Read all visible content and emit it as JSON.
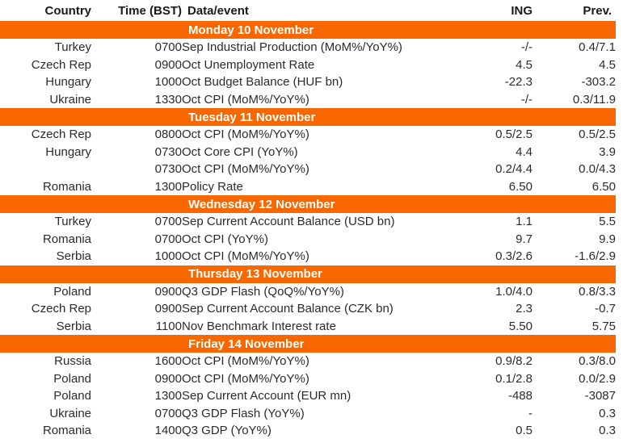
{
  "colors": {
    "accent_orange": "#f96800",
    "band_text": "#ffffff",
    "body_text": "#2b2b2b",
    "background": "#ffffff"
  },
  "chart_data": {
    "type": "table",
    "columns": [
      "Country",
      "Time (BST)",
      "Data/event",
      "ING",
      "Prev."
    ],
    "sections": [
      {
        "day": "Monday 10 November",
        "rows": [
          {
            "country": "Turkey",
            "time": "0700",
            "event": "Sep Industrial Production (MoM%/YoY%)",
            "ing": "-/-",
            "prev": "0.4/7.1"
          },
          {
            "country": "Czech Rep",
            "time": "0900",
            "event": "Oct Unemployment Rate",
            "ing": "4.5",
            "prev": "4.5"
          },
          {
            "country": "Hungary",
            "time": "1000",
            "event": "Oct Budget Balance (HUF bn)",
            "ing": "-22.3",
            "prev": "-303.2"
          },
          {
            "country": "Ukraine",
            "time": "1330",
            "event": "Oct CPI (MoM%/YoY%)",
            "ing": "-/-",
            "prev": "0.3/11.9"
          }
        ]
      },
      {
        "day": "Tuesday 11 November",
        "rows": [
          {
            "country": "Czech Rep",
            "time": "0800",
            "event": "Oct CPI (MoM%/YoY%)",
            "ing": "0.5/2.5",
            "prev": "0.5/2.5"
          },
          {
            "country": "Hungary",
            "time": "0730",
            "event": "Oct Core CPI (YoY%)",
            "ing": "4.4",
            "prev": "3.9"
          },
          {
            "country": "",
            "time": "0730",
            "event": "Oct CPI (MoM%/YoY%)",
            "ing": "0.2/4.4",
            "prev": "0.0/4.3"
          },
          {
            "country": "Romania",
            "time": "1300",
            "event": "Policy Rate",
            "ing": "6.50",
            "prev": "6.50"
          }
        ]
      },
      {
        "day": "Wednesday 12 November",
        "rows": [
          {
            "country": "Turkey",
            "time": "0700",
            "event": "Sep Current Account Balance (USD bn)",
            "ing": "1.1",
            "prev": "5.5"
          },
          {
            "country": "Romania",
            "time": "0700",
            "event": "Oct CPI (YoY%)",
            "ing": "9.7",
            "prev": "9.9"
          },
          {
            "country": "Serbia",
            "time": "1000",
            "event": "Oct CPI (MoM%/YoY%)",
            "ing": "0.3/2.6",
            "prev": "-1.6/2.9"
          }
        ]
      },
      {
        "day": "Thursday 13 November",
        "rows": [
          {
            "country": "Poland",
            "time": "0900",
            "event": "Q3 GDP Flash (QoQ%/YoY%)",
            "ing": "1.0/4.0",
            "prev": "0.8/3.3"
          },
          {
            "country": "Czech Rep",
            "time": "0900",
            "event": "Sep Current Account Balance (CZK bn)",
            "ing": "2.3",
            "prev": "-0.7"
          },
          {
            "country": "Serbia",
            "time": "1100",
            "event": "Nov Benchmark Interest rate",
            "ing": "5.50",
            "prev": "5.75"
          }
        ]
      },
      {
        "day": "Friday 14 November",
        "rows": [
          {
            "country": "Russia",
            "time": "1600",
            "event": "Oct CPI (MoM%/YoY%)",
            "ing": "0.9/8.2",
            "prev": "0.3/8.0"
          },
          {
            "country": "Poland",
            "time": "0900",
            "event": "Oct CPI (MoM%/YoY%)",
            "ing": "0.1/2.8",
            "prev": "0.0/2.9"
          },
          {
            "country": "Poland",
            "time": "1300",
            "event": "Sep Current Account (EUR mn)",
            "ing": "-488",
            "prev": "-3087"
          },
          {
            "country": "Ukraine",
            "time": "0700",
            "event": "Q3 GDP Flash (YoY%)",
            "ing": "-",
            "prev": "0.3"
          },
          {
            "country": "Romania",
            "time": "1400",
            "event": "Q3 GDP (YoY%)",
            "ing": "0.5",
            "prev": "0.3"
          }
        ]
      }
    ]
  }
}
